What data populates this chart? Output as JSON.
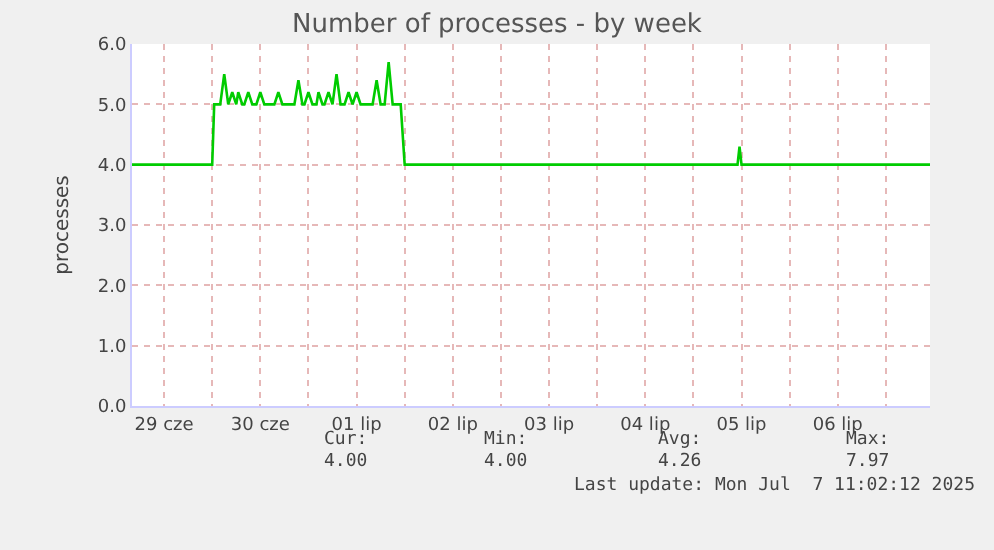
{
  "chart_data": {
    "type": "line",
    "title": "Number of processes - by week",
    "ylabel": "processes",
    "xlim": [
      "2025-06-29T04:00",
      "2025-07-07T11:00"
    ],
    "xticks": [
      {
        "value": "2025-06-29T12:00",
        "label": "29 cze"
      },
      {
        "value": "2025-06-30T00:00",
        "label": null
      },
      {
        "value": "2025-06-30T12:00",
        "label": "30 cze"
      },
      {
        "value": "2025-07-01T00:00",
        "label": null
      },
      {
        "value": "2025-07-01T12:00",
        "label": "01 lip"
      },
      {
        "value": "2025-07-02T00:00",
        "label": null
      },
      {
        "value": "2025-07-02T12:00",
        "label": "02 lip"
      },
      {
        "value": "2025-07-03T00:00",
        "label": null
      },
      {
        "value": "2025-07-03T12:00",
        "label": "03 lip"
      },
      {
        "value": "2025-07-04T00:00",
        "label": null
      },
      {
        "value": "2025-07-04T12:00",
        "label": "04 lip"
      },
      {
        "value": "2025-07-05T00:00",
        "label": null
      },
      {
        "value": "2025-07-05T12:00",
        "label": "05 lip"
      },
      {
        "value": "2025-07-06T00:00",
        "label": null
      },
      {
        "value": "2025-07-06T12:00",
        "label": "06 lip"
      },
      {
        "value": "2025-07-07T00:00",
        "label": null
      }
    ],
    "ylim": [
      0,
      6
    ],
    "yticks": [
      {
        "value": 0,
        "label": "0.0"
      },
      {
        "value": 1,
        "label": "1.0"
      },
      {
        "value": 2,
        "label": "2.0"
      },
      {
        "value": 3,
        "label": "3.0"
      },
      {
        "value": 4,
        "label": "4.0"
      },
      {
        "value": 5,
        "label": "5.0"
      },
      {
        "value": 6,
        "label": "6.0"
      }
    ],
    "grid": true,
    "marker": "none",
    "line_style": "solid",
    "x": [
      "2025-06-29T04:00",
      "2025-06-30T00:00",
      "2025-06-30T00:30",
      "2025-06-30T02:00",
      "2025-06-30T03:00",
      "2025-06-30T04:00",
      "2025-06-30T05:00",
      "2025-06-30T06:00",
      "2025-06-30T06:30",
      "2025-06-30T07:30",
      "2025-06-30T08:00",
      "2025-06-30T09:00",
      "2025-06-30T10:00",
      "2025-06-30T11:00",
      "2025-06-30T12:00",
      "2025-06-30T13:00",
      "2025-06-30T15:30",
      "2025-06-30T16:30",
      "2025-06-30T17:30",
      "2025-06-30T20:30",
      "2025-06-30T21:30",
      "2025-06-30T22:30",
      "2025-06-30T23:00",
      "2025-07-01T00:00",
      "2025-07-01T01:00",
      "2025-07-01T02:00",
      "2025-07-01T02:30",
      "2025-07-01T03:30",
      "2025-07-01T04:00",
      "2025-07-01T05:00",
      "2025-07-01T06:00",
      "2025-07-01T07:00",
      "2025-07-01T08:00",
      "2025-07-01T09:00",
      "2025-07-01T10:00",
      "2025-07-01T11:00",
      "2025-07-01T12:00",
      "2025-07-01T13:00",
      "2025-07-01T14:00",
      "2025-07-01T15:00",
      "2025-07-01T16:00",
      "2025-07-01T17:00",
      "2025-07-01T18:00",
      "2025-07-01T19:00",
      "2025-07-01T20:00",
      "2025-07-01T21:00",
      "2025-07-01T23:00",
      "2025-07-02T00:00",
      "2025-07-05T11:00",
      "2025-07-05T11:30",
      "2025-07-05T12:00",
      "2025-07-07T11:00"
    ],
    "series": [
      {
        "color": "#00cc00",
        "values": [
          4.0,
          4.0,
          5.0,
          5.0,
          5.5,
          5.0,
          5.2,
          5.0,
          5.2,
          5.0,
          5.0,
          5.2,
          5.0,
          5.0,
          5.2,
          5.0,
          5.0,
          5.2,
          5.0,
          5.0,
          5.4,
          5.0,
          5.0,
          5.2,
          5.0,
          5.0,
          5.2,
          5.0,
          5.0,
          5.2,
          5.0,
          5.5,
          5.0,
          5.0,
          5.2,
          5.0,
          5.2,
          5.0,
          5.0,
          5.0,
          5.0,
          5.4,
          5.0,
          5.0,
          5.7,
          5.0,
          5.0,
          4.0,
          4.0,
          4.3,
          4.0,
          4.0
        ]
      }
    ],
    "annotations": [
      "Cur:",
      "Min:",
      "Avg:",
      "Max:",
      "4.00",
      "4.00",
      "4.26",
      "7.97",
      "Last update: Mon Jul  7 11:02:12 2025"
    ]
  }
}
